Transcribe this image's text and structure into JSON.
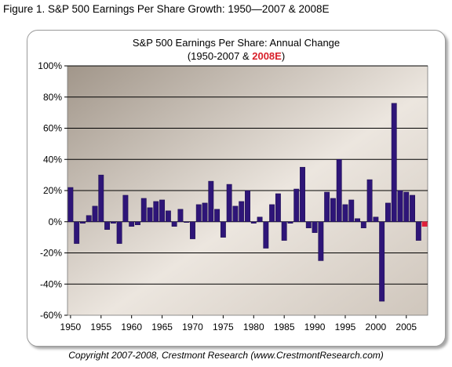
{
  "figure_title": "Figure 1.  S&P 500 Earnings Per Share Growth: 1950—2007 & 2008E",
  "copyright": "Copyright 2007-2008, Crestmont Research (www.CrestmontResearch.com)",
  "colors": {
    "bar": "#2e1578",
    "bar_estimate": "#e0203a",
    "estimate_label": "#d8202a",
    "gridline": "#000000",
    "plot_bg_dark": "#a1968a",
    "plot_bg_light": "#ece6df"
  },
  "chart_data": {
    "type": "bar",
    "title": "S&P 500 Earnings Per Share: Annual Change",
    "subtitle_prefix": "(1950-2007 & ",
    "subtitle_estimate": "2008E",
    "subtitle_suffix": ")",
    "xlabel": "",
    "ylabel": "",
    "ylim": [
      -60,
      100
    ],
    "yticks": [
      -60,
      -40,
      -20,
      0,
      20,
      40,
      60,
      80,
      100
    ],
    "ytick_labels": [
      "-60%",
      "-40%",
      "-20%",
      "0%",
      "20%",
      "40%",
      "60%",
      "80%",
      "100%"
    ],
    "xticks": [
      1950,
      1955,
      1960,
      1965,
      1970,
      1975,
      1980,
      1985,
      1990,
      1995,
      2000,
      2005
    ],
    "grid": true,
    "legend": "none",
    "categories": [
      1950,
      1951,
      1952,
      1953,
      1954,
      1955,
      1956,
      1957,
      1958,
      1959,
      1960,
      1961,
      1962,
      1963,
      1964,
      1965,
      1966,
      1967,
      1968,
      1969,
      1970,
      1971,
      1972,
      1973,
      1974,
      1975,
      1976,
      1977,
      1978,
      1979,
      1980,
      1981,
      1982,
      1983,
      1984,
      1985,
      1986,
      1987,
      1988,
      1989,
      1990,
      1991,
      1992,
      1993,
      1994,
      1995,
      1996,
      1997,
      1998,
      1999,
      2000,
      2001,
      2002,
      2003,
      2004,
      2005,
      2006,
      2007,
      2008
    ],
    "values": [
      22,
      -14,
      -1,
      4,
      10,
      30,
      -5,
      -1,
      -14,
      17,
      -3,
      -2,
      15,
      9,
      13,
      14,
      7,
      -3,
      8,
      0,
      -11,
      11,
      12,
      26,
      8,
      -10,
      24,
      10,
      13,
      20,
      -1,
      3,
      -17,
      11,
      18,
      -12,
      -1,
      21,
      35,
      -4,
      -7,
      -25,
      19,
      15,
      40,
      11,
      14,
      2,
      -4,
      27,
      3,
      -51,
      12,
      76,
      20,
      19,
      17,
      -12,
      -3
    ],
    "estimate_index": 58
  }
}
